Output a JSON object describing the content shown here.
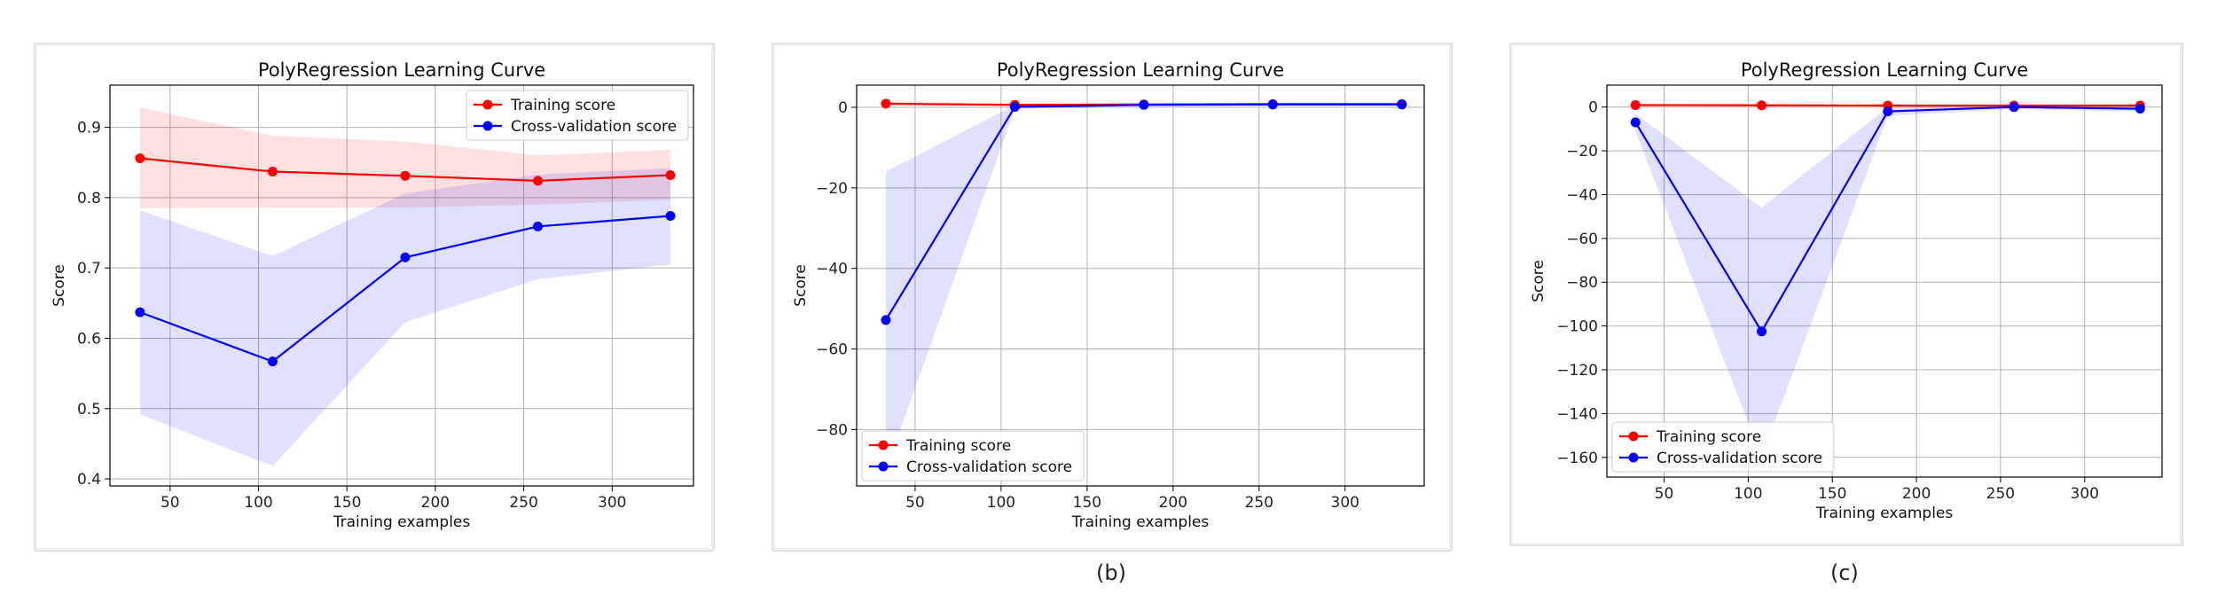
{
  "colors": {
    "training": "#ff0000",
    "cv": "#0000ff",
    "training_band": "#ff0000",
    "cv_band": "#0000ff",
    "grid": "#b0b0b0"
  },
  "chart_data": [
    {
      "type": "line",
      "title": "PolyRegression Learning Curve",
      "xlabel": "Training examples",
      "ylabel": "Score",
      "sublabel": "",
      "xlim": [
        16,
        346
      ],
      "ylim": [
        0.39,
        0.96
      ],
      "xticks": [
        50,
        100,
        150,
        200,
        250,
        300
      ],
      "yticks": [
        0.4,
        0.5,
        0.6,
        0.7,
        0.8,
        0.9
      ],
      "ytick_labels": [
        "0.4",
        "0.5",
        "0.6",
        "0.7",
        "0.8",
        "0.9"
      ],
      "grid": true,
      "legend_position": "top-right",
      "x": [
        33,
        108,
        183,
        258,
        333
      ],
      "series": [
        {
          "name": "Training score",
          "values": [
            0.856,
            0.837,
            0.831,
            0.824,
            0.832
          ],
          "band_lower": [
            0.785,
            0.786,
            0.786,
            0.79,
            0.797
          ],
          "band_upper": [
            0.928,
            0.888,
            0.88,
            0.86,
            0.868
          ]
        },
        {
          "name": "Cross-validation score",
          "values": [
            0.637,
            0.567,
            0.715,
            0.759,
            0.774
          ],
          "band_lower": [
            0.492,
            0.418,
            0.623,
            0.684,
            0.705
          ],
          "band_upper": [
            0.782,
            0.717,
            0.806,
            0.833,
            0.842
          ]
        }
      ]
    },
    {
      "type": "line",
      "title": "PolyRegression Learning Curve",
      "xlabel": "Training examples",
      "ylabel": "Score",
      "sublabel": "(b)",
      "xlim": [
        16,
        346
      ],
      "ylim": [
        -94,
        5.5
      ],
      "xticks": [
        50,
        100,
        150,
        200,
        250,
        300
      ],
      "yticks": [
        -80,
        -60,
        -40,
        -20,
        0
      ],
      "ytick_labels": [
        "−80",
        "−60",
        "−40",
        "−20",
        "0"
      ],
      "grid": true,
      "legend_position": "bottom-left",
      "x": [
        33,
        108,
        183,
        258,
        333
      ],
      "series": [
        {
          "name": "Training score",
          "values": [
            0.9,
            0.6,
            0.7,
            0.8,
            0.8
          ],
          "band_lower": [
            0.5,
            0.3,
            0.4,
            0.5,
            0.5
          ],
          "band_upper": [
            1.3,
            0.9,
            1.0,
            1.1,
            1.1
          ]
        },
        {
          "name": "Cross-validation score",
          "values": [
            -52.8,
            0.1,
            0.6,
            0.7,
            0.7
          ],
          "band_lower": [
            -90,
            -0.4,
            0.2,
            0.3,
            0.3
          ],
          "band_upper": [
            -16,
            0.6,
            1.0,
            1.1,
            1.1
          ]
        }
      ]
    },
    {
      "type": "line",
      "title": "PolyRegression Learning Curve",
      "xlabel": "Training examples",
      "ylabel": "Score",
      "sublabel": "(c)",
      "xlim": [
        16,
        346
      ],
      "ylim": [
        -169,
        10
      ],
      "xticks": [
        50,
        100,
        150,
        200,
        250,
        300
      ],
      "yticks": [
        -160,
        -140,
        -120,
        -100,
        -80,
        -60,
        -40,
        -20,
        0
      ],
      "ytick_labels": [
        "−160",
        "−140",
        "−120",
        "−100",
        "−80",
        "−60",
        "−40",
        "−20",
        "0"
      ],
      "grid": true,
      "legend_position": "bottom-left",
      "x": [
        33,
        108,
        183,
        258,
        333
      ],
      "series": [
        {
          "name": "Training score",
          "values": [
            0.9,
            0.8,
            0.7,
            0.7,
            0.7
          ],
          "band_lower": [
            0.4,
            0.3,
            0.2,
            0.2,
            0.2
          ],
          "band_upper": [
            1.4,
            1.3,
            1.2,
            1.2,
            1.2
          ]
        },
        {
          "name": "Cross-validation score",
          "values": [
            -7,
            -102.5,
            -2,
            0.0,
            -0.8
          ],
          "band_lower": [
            -11,
            -160,
            -4,
            -1,
            -2
          ],
          "band_upper": [
            -3,
            -46,
            0,
            1,
            0.4
          ]
        }
      ]
    }
  ]
}
